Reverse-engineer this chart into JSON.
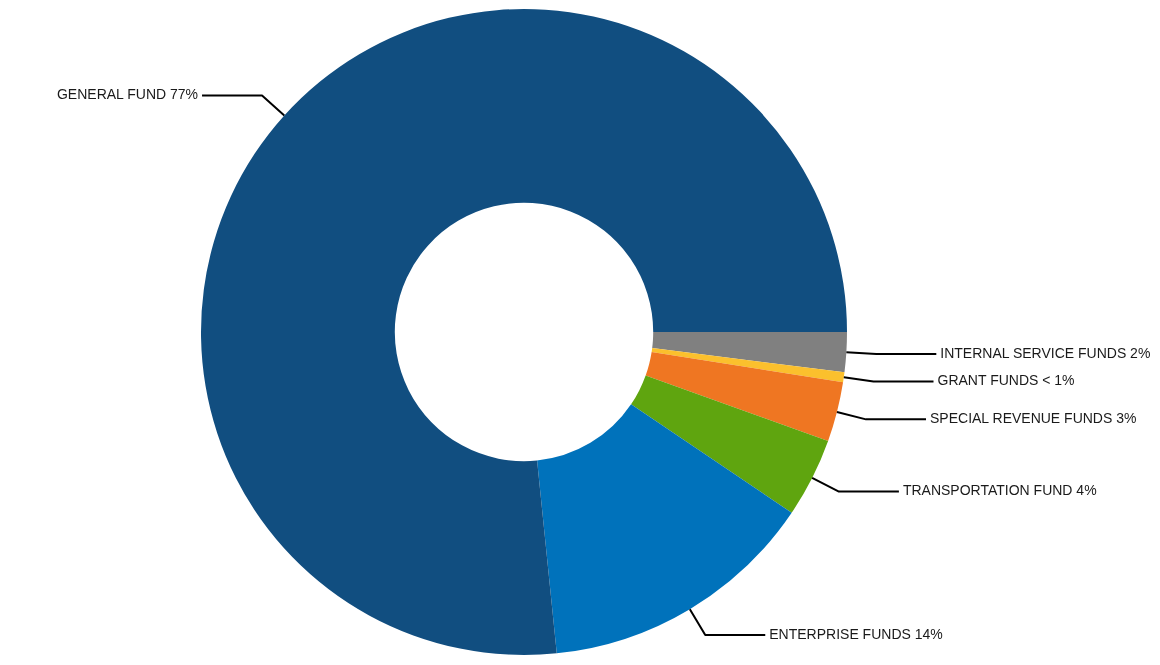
{
  "chart_data": {
    "type": "donut",
    "categories": [
      "INTERNAL SERVICE FUNDS",
      "GRANT FUNDS",
      "SPECIAL REVENUE FUNDS",
      "TRANSPORTATION FUND",
      "ENTERPRISE FUNDS",
      "GENERAL FUND"
    ],
    "values": [
      2,
      0.5,
      3,
      4,
      14,
      77
    ],
    "value_labels": [
      "2%",
      "< 1%",
      "3%",
      "4%",
      "14%",
      "77%"
    ],
    "colors": [
      "#808080",
      "#fbc02d",
      "#ef7622",
      "#5fa50f",
      "#0072bb",
      "#114e80"
    ],
    "legend": false
  }
}
